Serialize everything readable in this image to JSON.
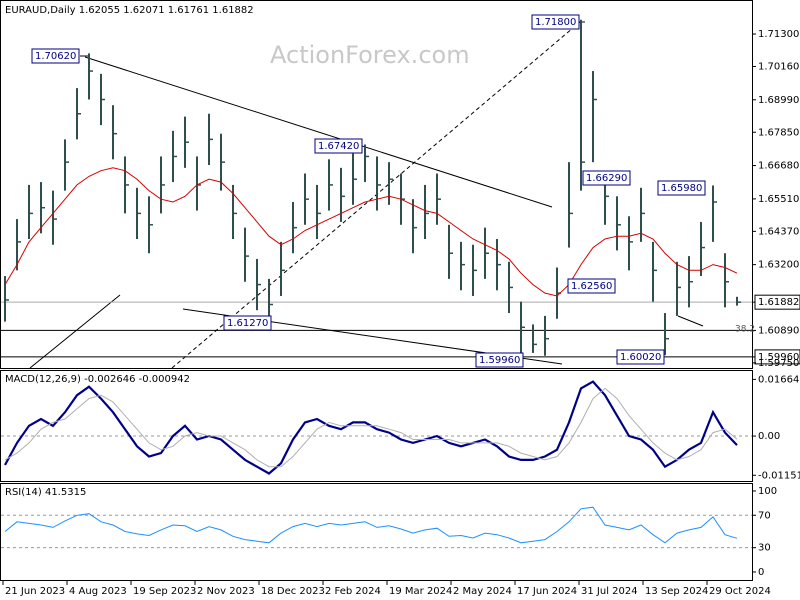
{
  "chart_data": [
    {
      "type": "ohlc",
      "title": "EURAUD,Daily 1.62055 1.62071 1.61761 1.61882",
      "watermark": "ActionForex.com",
      "x": [
        0,
        6,
        12,
        18,
        24,
        30,
        36,
        42,
        48,
        54,
        60,
        66,
        72,
        78,
        84,
        90,
        96,
        102,
        108,
        114,
        120,
        126,
        132,
        138,
        144,
        150,
        156,
        162,
        168,
        174,
        180,
        186,
        192,
        198,
        204,
        210,
        216,
        222,
        228,
        234,
        240,
        246,
        252,
        258,
        264,
        270,
        276,
        282,
        288,
        294,
        300,
        306,
        312,
        318,
        324,
        330,
        336,
        342,
        348,
        354,
        360,
        366
      ],
      "high": [
        1.628,
        1.648,
        1.66,
        1.661,
        1.658,
        1.676,
        1.694,
        1.7062,
        1.699,
        1.688,
        1.67,
        1.659,
        1.656,
        1.67,
        1.679,
        1.684,
        1.67,
        1.685,
        1.678,
        1.66,
        1.645,
        1.634,
        1.627,
        1.64,
        1.654,
        1.664,
        1.66,
        1.669,
        1.666,
        1.671,
        1.6742,
        1.67,
        1.668,
        1.664,
        1.655,
        1.66,
        1.664,
        1.646,
        1.64,
        1.639,
        1.645,
        1.641,
        1.633,
        1.619,
        1.611,
        1.614,
        1.631,
        1.668,
        1.718,
        1.7,
        1.6629,
        1.656,
        1.649,
        1.659,
        1.64,
        1.615,
        1.633,
        1.635,
        1.647,
        1.6598,
        1.636,
        1.62071
      ],
      "low": [
        1.612,
        1.63,
        1.641,
        1.643,
        1.639,
        1.658,
        1.676,
        1.69,
        1.681,
        1.669,
        1.65,
        1.641,
        1.636,
        1.65,
        1.661,
        1.666,
        1.651,
        1.667,
        1.658,
        1.641,
        1.626,
        1.616,
        1.6127,
        1.621,
        1.636,
        1.646,
        1.641,
        1.651,
        1.647,
        1.653,
        1.661,
        1.651,
        1.653,
        1.646,
        1.636,
        1.641,
        1.646,
        1.627,
        1.623,
        1.621,
        1.627,
        1.623,
        1.615,
        1.5996,
        1.601,
        1.6,
        1.613,
        1.638,
        1.658,
        1.668,
        1.646,
        1.637,
        1.63,
        1.64,
        1.619,
        1.6002,
        1.614,
        1.617,
        1.628,
        1.64,
        1.617,
        1.61761
      ],
      "close": [
        1.6196,
        1.64,
        1.65,
        1.652,
        1.648,
        1.668,
        1.685,
        1.7,
        1.69,
        1.678,
        1.66,
        1.65,
        1.646,
        1.66,
        1.67,
        1.675,
        1.66,
        1.676,
        1.668,
        1.65,
        1.635,
        1.625,
        1.618,
        1.63,
        1.645,
        1.655,
        1.65,
        1.66,
        1.656,
        1.662,
        1.67,
        1.66,
        1.662,
        1.655,
        1.645,
        1.65,
        1.655,
        1.636,
        1.632,
        1.63,
        1.636,
        1.632,
        1.624,
        1.61,
        1.604,
        1.606,
        1.622,
        1.65,
        1.668,
        1.69,
        1.656,
        1.646,
        1.64,
        1.65,
        1.63,
        1.606,
        1.624,
        1.626,
        1.638,
        1.654,
        1.626,
        1.61882
      ],
      "color": "#2f4f4f",
      "lines": [
        {
          "color": "#d40000",
          "values": [
            1.625,
            1.632,
            1.64,
            1.645,
            1.65,
            1.655,
            1.66,
            1.663,
            1.665,
            1.666,
            1.665,
            1.662,
            1.658,
            1.655,
            1.654,
            1.656,
            1.66,
            1.662,
            1.661,
            1.657,
            1.652,
            1.647,
            1.642,
            1.639,
            1.641,
            1.644,
            1.646,
            1.648,
            1.65,
            1.652,
            1.654,
            1.655,
            1.656,
            1.655,
            1.653,
            1.651,
            1.65,
            1.647,
            1.644,
            1.641,
            1.639,
            1.637,
            1.634,
            1.629,
            1.625,
            1.622,
            1.621,
            1.625,
            1.632,
            1.638,
            1.641,
            1.642,
            1.642,
            1.643,
            1.641,
            1.636,
            1.632,
            1.63,
            1.63,
            1.632,
            1.631,
            1.629
          ]
        }
      ],
      "xlim": [
        -2.5,
        373.5
      ],
      "xticks": [
        {
          "value": -1,
          "label": "21 Jun 2023"
        },
        {
          "value": 31,
          "label": "4 Aug 2023"
        },
        {
          "value": 63,
          "label": "19 Sep 2023"
        },
        {
          "value": 95,
          "label": "2 Nov 2023"
        },
        {
          "value": 127,
          "label": "18 Dec 2023"
        },
        {
          "value": 159,
          "label": "2 Feb 2024"
        },
        {
          "value": 191,
          "label": "19 Mar 2024"
        },
        {
          "value": 223,
          "label": "2 May 2024"
        },
        {
          "value": 255,
          "label": "17 Jun 2024"
        },
        {
          "value": 287,
          "label": "31 Jul 2024"
        },
        {
          "value": 319,
          "label": "13 Sep 2024"
        },
        {
          "value": 351,
          "label": "29 Oct 2024"
        }
      ],
      "ylim": [
        1.5957,
        1.7246
      ],
      "yticks": [
        {
          "value": 1.713,
          "label": "1.71300"
        },
        {
          "value": 1.7016,
          "label": "1.70160"
        },
        {
          "value": 1.6899,
          "label": "1.68990"
        },
        {
          "value": 1.6785,
          "label": "1.67850"
        },
        {
          "value": 1.6668,
          "label": "1.66680"
        },
        {
          "value": 1.6551,
          "label": "1.65510"
        },
        {
          "value": 1.6437,
          "label": "1.64370"
        },
        {
          "value": 1.632,
          "label": "1.63200"
        },
        {
          "value": 1.61882,
          "label": "1.61882"
        },
        {
          "value": 1.6089,
          "label": "1.60890"
        },
        {
          "value": 1.5996,
          "label": "1.59960"
        },
        {
          "value": 1.5975,
          "label": "1.59750"
        }
      ],
      "annotations": [
        "1.70620",
        "1.71800",
        "1.67420",
        "1.66290",
        "1.65980",
        "1.62560",
        "1.61270",
        "1.59960",
        "1.60020",
        "38.2"
      ]
    },
    {
      "type": "line",
      "title": "MACD(12,26,9) -0.002646 -0.000942",
      "series": [
        {
          "color": "#00008b",
          "values": [
            -0.0085,
            -0.002,
            0.003,
            0.005,
            0.003,
            0.007,
            0.012,
            0.0145,
            0.011,
            0.007,
            0.002,
            -0.003,
            -0.006,
            -0.005,
            0,
            0.003,
            -0.001,
            0,
            -0.001,
            -0.004,
            -0.007,
            -0.009,
            -0.011,
            -0.008,
            -0.001,
            0.004,
            0.005,
            0.003,
            0.002,
            0.004,
            0.004,
            0.002,
            0.001,
            -0.001,
            -0.002,
            -0.001,
            0,
            -0.002,
            -0.003,
            -0.002,
            -0.001,
            -0.003,
            -0.006,
            -0.007,
            -0.007,
            -0.006,
            -0.004,
            0.004,
            0.014,
            0.016,
            0.012,
            0.006,
            0,
            -0.001,
            -0.004,
            -0.009,
            -0.007,
            -0.004,
            -0.002,
            0.007,
            0.001,
            -0.002646
          ]
        },
        {
          "color": "#b0b0b0",
          "values": [
            -0.007,
            -0.005,
            -0.002,
            0.002,
            0.004,
            0.005,
            0.008,
            0.011,
            0.012,
            0.01,
            0.006,
            0.002,
            -0.002,
            -0.004,
            -0.003,
            0,
            0.001,
            0,
            0,
            -0.002,
            -0.004,
            -0.007,
            -0.009,
            -0.009,
            -0.006,
            -0.002,
            0.002,
            0.004,
            0.003,
            0.003,
            0.003,
            0.003,
            0.002,
            0.001,
            -0.001,
            -0.001,
            -0.001,
            -0.001,
            -0.002,
            -0.002,
            -0.002,
            -0.002,
            -0.003,
            -0.005,
            -0.006,
            -0.007,
            -0.006,
            -0.002,
            0.004,
            0.011,
            0.014,
            0.011,
            0.006,
            0.002,
            -0.002,
            -0.005,
            -0.007,
            -0.006,
            -0.004,
            0.001,
            0.002,
            -0.000942
          ]
        }
      ],
      "ylim": [
        -0.0132,
        0.0191
      ],
      "yticks": [
        {
          "value": 0.01664,
          "label": "0.01664"
        },
        {
          "value": 0,
          "label": "0.00"
        },
        {
          "value": -0.011515,
          "label": "-0.011515"
        }
      ]
    },
    {
      "type": "line",
      "title": "RSI(14) 41.5315",
      "series": [
        {
          "color": "#1e90ff",
          "values": [
            50,
            62,
            60,
            58,
            55,
            63,
            70,
            72,
            62,
            58,
            50,
            47,
            45,
            52,
            58,
            57,
            50,
            56,
            52,
            44,
            40,
            38,
            36,
            48,
            56,
            60,
            56,
            60,
            58,
            60,
            62,
            55,
            57,
            53,
            48,
            52,
            54,
            44,
            45,
            42,
            48,
            46,
            42,
            36,
            38,
            40,
            50,
            62,
            78,
            80,
            58,
            55,
            52,
            58,
            46,
            36,
            48,
            52,
            55,
            68,
            46,
            41.5315
          ]
        }
      ],
      "ylim": [
        -9.9,
        108.6
      ],
      "yticks": [
        100,
        70,
        30,
        0
      ]
    }
  ]
}
